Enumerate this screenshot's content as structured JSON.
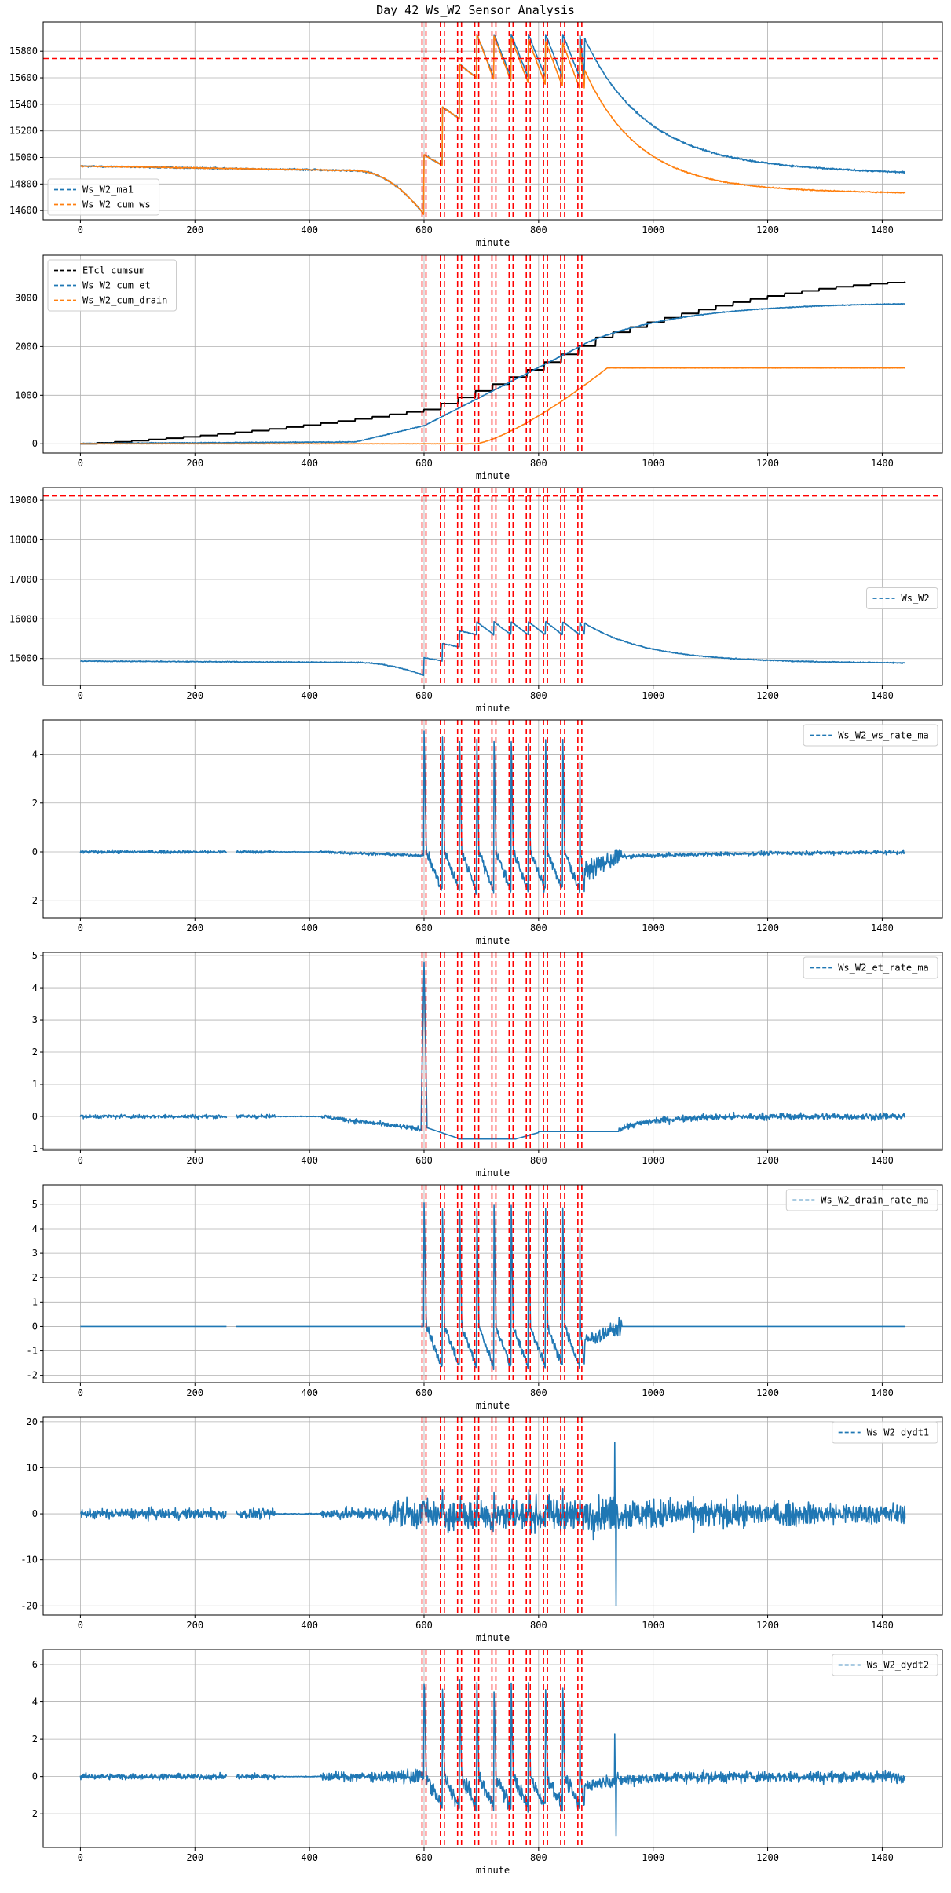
{
  "title": "Day 42 Ws_W2 Sensor Analysis",
  "xlabel": "minute",
  "colors": {
    "blue": "#1f77b4",
    "orange": "#ff7f0e",
    "black": "#000000",
    "red": "#ff0000",
    "grid": "#b0b0b0"
  },
  "events": [
    600,
    632,
    662,
    692,
    722,
    752,
    782,
    812,
    842,
    872
  ],
  "chart_data": [
    {
      "type": "line",
      "id": "ma1",
      "xlim": [
        -65,
        1505
      ],
      "ylim": [
        14530,
        16020
      ],
      "yticks": [
        14600,
        14800,
        15000,
        15200,
        15400,
        15600,
        15800
      ],
      "xticks": [
        0,
        200,
        400,
        600,
        800,
        1000,
        1200,
        1400
      ],
      "hline": 15745,
      "legend_loc": "lower-left",
      "series": [
        {
          "name": "Ws_W2_ma1",
          "color": "#1f77b4",
          "shape": "ws_ma1"
        },
        {
          "name": "Ws_W2_cum_ws",
          "color": "#ff7f0e",
          "shape": "cum_ws"
        }
      ]
    },
    {
      "type": "line",
      "id": "cum",
      "xlim": [
        -65,
        1505
      ],
      "ylim": [
        -190,
        3880
      ],
      "yticks": [
        0,
        1000,
        2000,
        3000
      ],
      "xticks": [
        0,
        200,
        400,
        600,
        800,
        1000,
        1200,
        1400
      ],
      "legend_loc": "upper-left",
      "series": [
        {
          "name": "ETcl_cumsum",
          "color": "#000000",
          "shape": "etcl"
        },
        {
          "name": "Ws_W2_cum_et",
          "color": "#1f77b4",
          "shape": "cum_et"
        },
        {
          "name": "Ws_W2_cum_drain",
          "color": "#ff7f0e",
          "shape": "cum_drain"
        }
      ]
    },
    {
      "type": "line",
      "id": "ws",
      "xlim": [
        -65,
        1505
      ],
      "ylim": [
        14320,
        19320
      ],
      "yticks": [
        15000,
        16000,
        17000,
        18000,
        19000
      ],
      "xticks": [
        0,
        200,
        400,
        600,
        800,
        1000,
        1200,
        1400
      ],
      "hline": 19110,
      "legend_loc": "center-right",
      "series": [
        {
          "name": "Ws_W2",
          "color": "#1f77b4",
          "shape": "ws"
        }
      ]
    },
    {
      "type": "line",
      "id": "wsrate",
      "xlim": [
        -65,
        1505
      ],
      "ylim": [
        -2.7,
        5.4
      ],
      "yticks": [
        -2,
        0,
        2,
        4
      ],
      "xticks": [
        0,
        200,
        400,
        600,
        800,
        1000,
        1200,
        1400
      ],
      "legend_loc": "upper-right",
      "series": [
        {
          "name": "Ws_W2_ws_rate_ma",
          "color": "#1f77b4",
          "shape": "ws_rate"
        }
      ]
    },
    {
      "type": "line",
      "id": "etrate",
      "xlim": [
        -65,
        1505
      ],
      "ylim": [
        -1.05,
        5.1
      ],
      "yticks": [
        -1,
        0,
        1,
        2,
        3,
        4,
        5
      ],
      "xticks": [
        0,
        200,
        400,
        600,
        800,
        1000,
        1200,
        1400
      ],
      "legend_loc": "upper-right",
      "series": [
        {
          "name": "Ws_W2_et_rate_ma",
          "color": "#1f77b4",
          "shape": "et_rate"
        }
      ]
    },
    {
      "type": "line",
      "id": "drainrate",
      "xlim": [
        -65,
        1505
      ],
      "ylim": [
        -2.3,
        5.8
      ],
      "yticks": [
        -2,
        -1,
        0,
        1,
        2,
        3,
        4,
        5
      ],
      "xticks": [
        0,
        200,
        400,
        600,
        800,
        1000,
        1200,
        1400
      ],
      "legend_loc": "upper-right",
      "series": [
        {
          "name": "Ws_W2_drain_rate_ma",
          "color": "#1f77b4",
          "shape": "drain_rate"
        }
      ]
    },
    {
      "type": "line",
      "id": "dydt1",
      "xlim": [
        -65,
        1505
      ],
      "ylim": [
        -22,
        21
      ],
      "yticks": [
        -20,
        -10,
        0,
        10,
        20
      ],
      "xticks": [
        0,
        200,
        400,
        600,
        800,
        1000,
        1200,
        1400
      ],
      "legend_loc": "upper-right",
      "series": [
        {
          "name": "Ws_W2_dydt1",
          "color": "#1f77b4",
          "shape": "dydt1"
        }
      ]
    },
    {
      "type": "line",
      "id": "dydt2",
      "xlim": [
        -65,
        1505
      ],
      "ylim": [
        -3.8,
        6.8
      ],
      "yticks": [
        -2,
        0,
        2,
        4,
        6
      ],
      "xticks": [
        0,
        200,
        400,
        600,
        800,
        1000,
        1200,
        1400
      ],
      "legend_loc": "upper-right",
      "series": [
        {
          "name": "Ws_W2_dydt2",
          "color": "#1f77b4",
          "shape": "dydt2"
        }
      ]
    }
  ]
}
